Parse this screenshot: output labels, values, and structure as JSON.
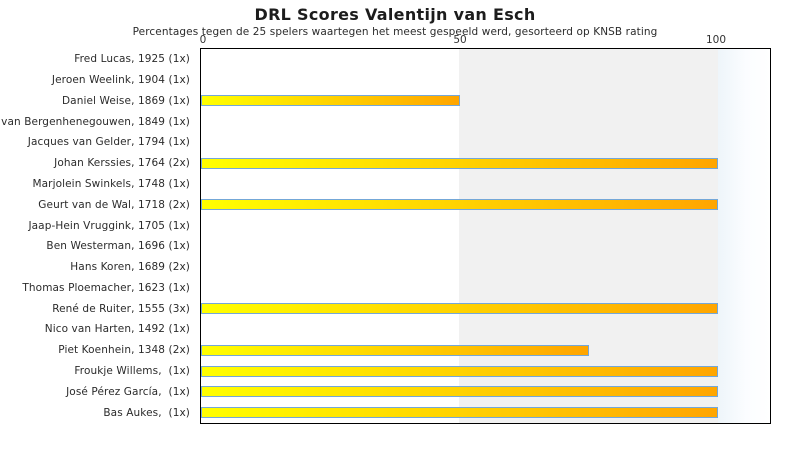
{
  "chart_data": {
    "type": "bar",
    "orientation": "horizontal",
    "title": "DRL Scores Valentijn van Esch",
    "subtitle": "Percentages tegen de 25 spelers waartegen het meest gespeeld werd, gesorteerd op KNSB rating",
    "categories": [
      "Fred Lucas, 1925 (1x)",
      "Jeroen Weelink, 1904 (1x)",
      "Daniel Weise, 1869 (1x)",
      "van Bergenhenegouwen, 1849 (1x)",
      "Jacques van Gelder, 1794 (1x)",
      "Johan Kerssies, 1764 (2x)",
      "Marjolein Swinkels, 1748 (1x)",
      "Geurt van de Wal, 1718 (2x)",
      "Jaap-Hein Vruggink, 1705 (1x)",
      "Ben Westerman, 1696 (1x)",
      "Hans Koren, 1689 (2x)",
      "Thomas Ploemacher, 1623 (1x)",
      "René de Ruiter, 1555 (3x)",
      "Nico van Harten, 1492 (1x)",
      "Piet Koenhein, 1348 (2x)",
      "Froukje Willems,  (1x)",
      "José Pérez García,  (1x)",
      "Bas Aukes,  (1x)"
    ],
    "values": [
      0,
      0,
      50,
      0,
      0,
      100,
      0,
      100,
      0,
      0,
      0,
      0,
      100,
      0,
      75,
      100,
      100,
      100
    ],
    "xlim": [
      0,
      100
    ],
    "x_ticks": [
      0,
      50,
      100
    ],
    "x_tick_labels": [
      "0",
      "50",
      "100"
    ],
    "grid": false,
    "legend": false,
    "colors": {
      "bar_gradient_start": "#ffff00",
      "bar_gradient_end": "#ffa500",
      "bar_border": "#74a7d8",
      "band_50_100": "#f1f1f1",
      "plot_border": "#000000",
      "text": "#2b2b2b"
    }
  }
}
